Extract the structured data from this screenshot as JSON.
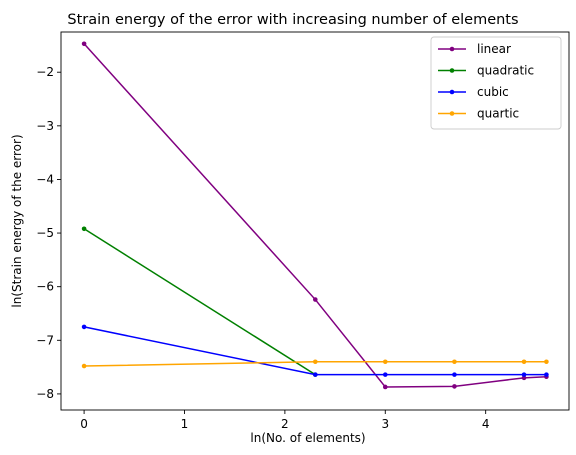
{
  "chart_data": {
    "type": "line",
    "title": "Strain energy of the error with increasing number of elements",
    "xlabel": "ln(No. of elements)",
    "ylabel": "ln(Strain energy of the error)",
    "xlim": [
      -0.23,
      4.83
    ],
    "ylim": [
      -8.3,
      -1.25
    ],
    "xticks": [
      0,
      1,
      2,
      3,
      4
    ],
    "yticks": [
      -2,
      -3,
      -4,
      -5,
      -6,
      -7,
      -8
    ],
    "xtick_labels": [
      "0",
      "1",
      "2",
      "3",
      "4"
    ],
    "ytick_labels": [
      "−2",
      "−3",
      "−4",
      "−5",
      "−6",
      "−7",
      "−8"
    ],
    "grid": false,
    "legend_position": "top-right",
    "series": [
      {
        "name": "linear",
        "color": "#800080",
        "x": [
          0,
          2.303,
          3.0,
          3.689,
          4.382,
          4.605
        ],
        "y": [
          -1.47,
          -6.24,
          -7.87,
          -7.86,
          -7.7,
          -7.68
        ]
      },
      {
        "name": "quadratic",
        "color": "#008000",
        "x": [
          0,
          2.303
        ],
        "y": [
          -4.92,
          -7.64
        ]
      },
      {
        "name": "cubic",
        "color": "#0000ff",
        "x": [
          0,
          2.303,
          3.0,
          3.689,
          4.382,
          4.605
        ],
        "y": [
          -6.75,
          -7.64,
          -7.64,
          -7.64,
          -7.64,
          -7.64
        ]
      },
      {
        "name": "quartic",
        "color": "#ffa500",
        "x": [
          0,
          2.303,
          3.0,
          3.689,
          4.382,
          4.605
        ],
        "y": [
          -7.48,
          -7.4,
          -7.4,
          -7.4,
          -7.4,
          -7.4
        ]
      }
    ]
  }
}
